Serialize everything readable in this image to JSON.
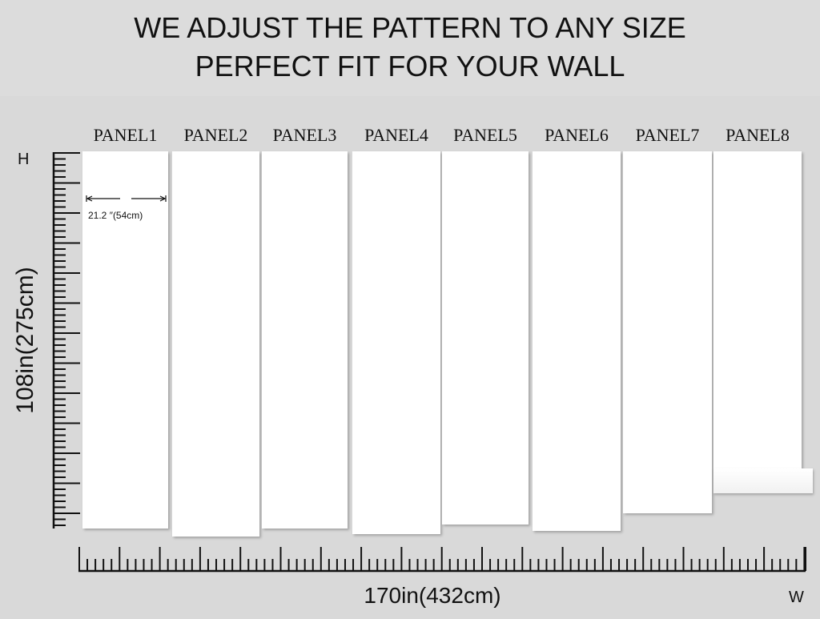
{
  "heading": {
    "line1": "WE ADJUST THE PATTERN TO ANY SIZE",
    "line2": "PERFECT FIT FOR YOUR WALL"
  },
  "panels": [
    "PANEL1",
    "PANEL2",
    "PANEL3",
    "PANEL4",
    "PANEL5",
    "PANEL6",
    "PANEL7",
    "PANEL8"
  ],
  "panel_width_label": "21.2  ″(54cm)",
  "height_axis": {
    "letter": "H",
    "label": "108in(275cm)"
  },
  "width_axis": {
    "letter": "W",
    "label": "170in(432cm)"
  },
  "colors": {
    "background": "#d9d9d9",
    "panel": "#ffffff",
    "ruler": "#111111"
  }
}
